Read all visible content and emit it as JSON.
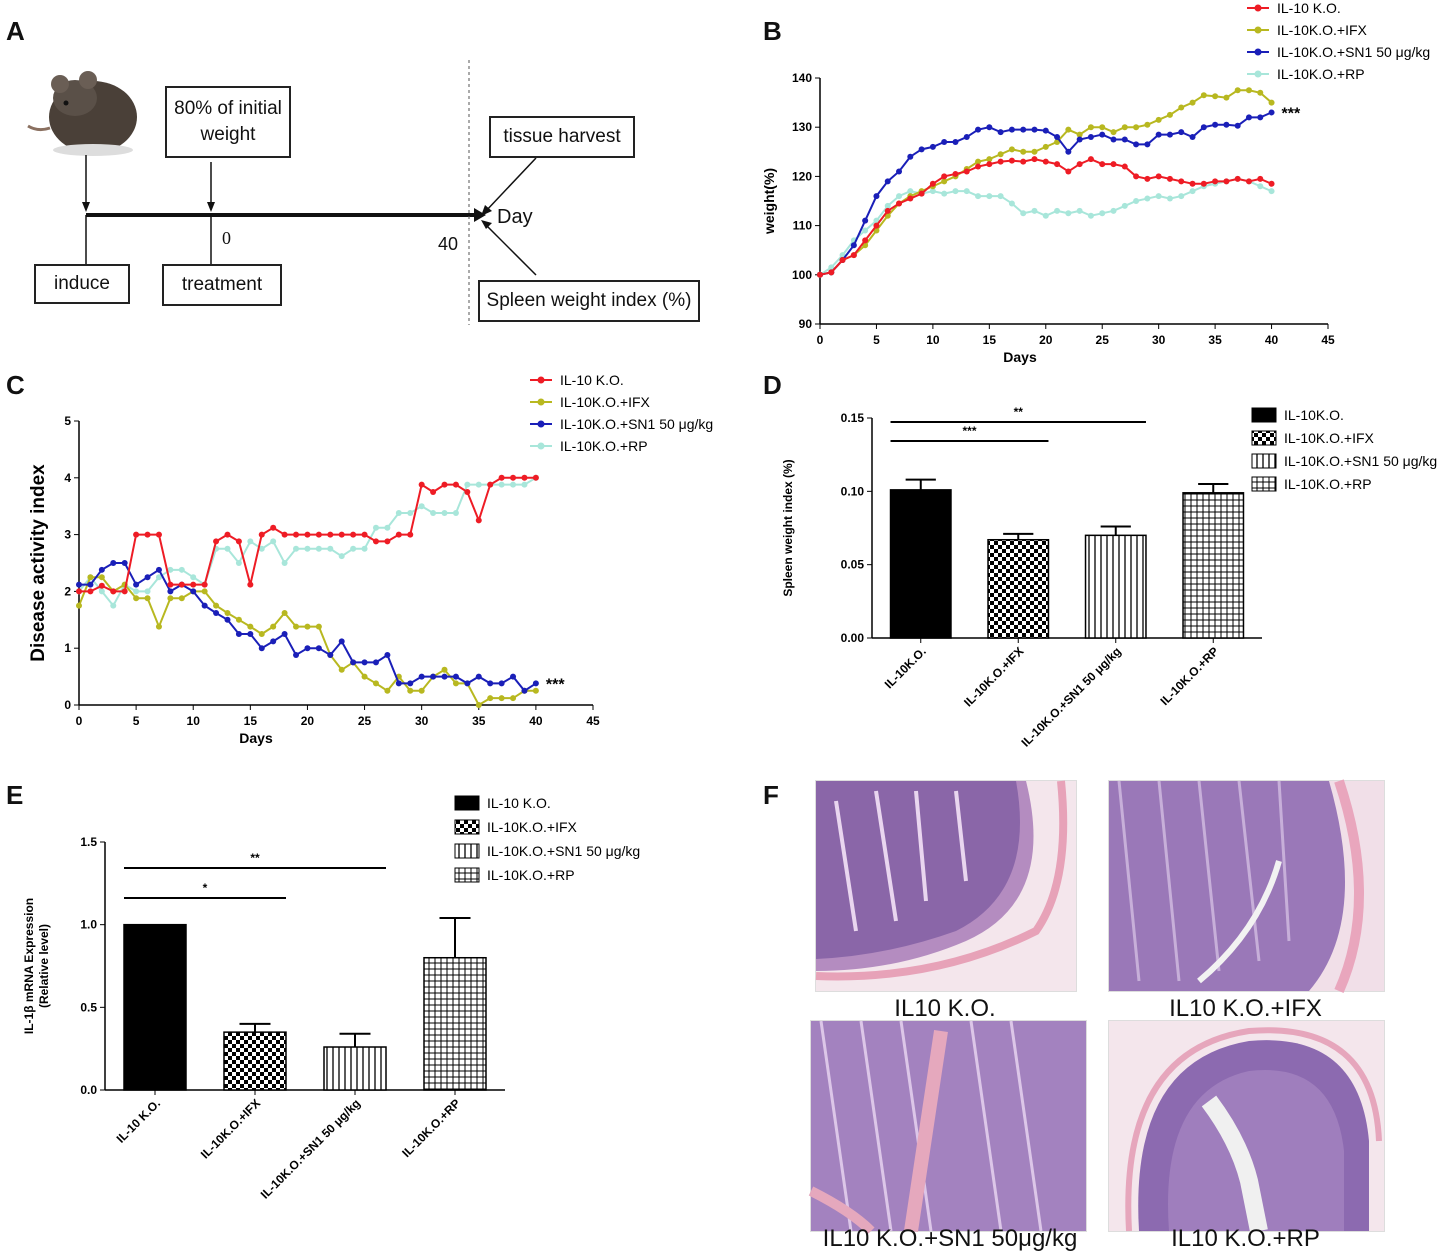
{
  "panels": {
    "A": {
      "letter": "A",
      "boxes": {
        "induce": "induce",
        "treatment": "treatment",
        "initial_weight": "80% of initial weight",
        "tissue_harvest": "tissue harvest",
        "spleen_index": "Spleen weight index (%)"
      },
      "labels": {
        "zero": "0",
        "forty": "40",
        "day": "Day"
      },
      "image_desc_icon": "mouse-icon"
    },
    "B": {
      "letter": "B"
    },
    "C": {
      "letter": "C"
    },
    "D": {
      "letter": "D"
    },
    "E": {
      "letter": "E"
    },
    "F": {
      "letter": "F",
      "captions": [
        "IL10 K.O.",
        "IL10 K.O.+IFX",
        "IL10 K.O.+SN1  50μg/kg",
        "IL10 K.O.+RP"
      ]
    }
  },
  "colors": {
    "red": "#ee1c25",
    "olive": "#b8b820",
    "blue": "#1a1fb8",
    "cyan": "#a8e6da"
  },
  "chart_data": [
    {
      "id": "B",
      "type": "line",
      "xlabel": "Days",
      "ylabel": "weight(%)",
      "xlim": [
        0,
        45
      ],
      "ylim": [
        90,
        140
      ],
      "xticks": [
        0,
        5,
        10,
        15,
        20,
        25,
        30,
        35,
        40,
        45
      ],
      "yticks": [
        90,
        100,
        110,
        120,
        130,
        140
      ],
      "annotation": "***",
      "legend": [
        "IL-10 K.O.",
        "IL-10K.O.+IFX",
        "IL-10K.O.+SN1 50 μg/kg",
        "IL-10K.O.+RP"
      ],
      "series": [
        {
          "name": "IL-10 K.O.",
          "color": "#ee1c25",
          "x": [
            0,
            1,
            2,
            3,
            4,
            5,
            6,
            7,
            8,
            9,
            10,
            11,
            12,
            13,
            14,
            15,
            16,
            17,
            18,
            19,
            20,
            21,
            22,
            23,
            24,
            25,
            26,
            27,
            28,
            29,
            30,
            31,
            32,
            33,
            34,
            35,
            36,
            37,
            38,
            39,
            40
          ],
          "values": [
            100,
            100.5,
            103,
            104,
            107,
            110,
            113,
            114.5,
            115.5,
            116.5,
            118.5,
            120,
            120.5,
            121,
            122,
            122.5,
            123,
            123.2,
            123,
            123.5,
            123,
            122.5,
            121,
            122.5,
            123.5,
            122.5,
            122.5,
            122,
            120,
            119.5,
            120,
            119.5,
            119,
            118.5,
            118.5,
            119,
            119,
            119.5,
            119,
            119.5,
            118.5
          ]
        },
        {
          "name": "IL-10K.O.+IFX",
          "color": "#b8b820",
          "x": [
            0,
            1,
            2,
            3,
            4,
            5,
            6,
            7,
            8,
            9,
            10,
            11,
            12,
            13,
            14,
            15,
            16,
            17,
            18,
            19,
            20,
            21,
            22,
            23,
            24,
            25,
            26,
            27,
            28,
            29,
            30,
            31,
            32,
            33,
            34,
            35,
            36,
            37,
            38,
            39,
            40
          ],
          "values": [
            100,
            100.5,
            103,
            104,
            106,
            109,
            112,
            114.5,
            116,
            117,
            118,
            119,
            120,
            121.5,
            123,
            123.5,
            124.5,
            125.5,
            125,
            125,
            126,
            127,
            129.5,
            128.5,
            130,
            130,
            129,
            130,
            130,
            130.5,
            131.5,
            132.5,
            134,
            135,
            136.5,
            136.3,
            136,
            137.5,
            137.5,
            137,
            135
          ]
        },
        {
          "name": "IL-10K.O.+SN1 50 μg/kg",
          "color": "#1a1fb8",
          "x": [
            0,
            1,
            2,
            3,
            4,
            5,
            6,
            7,
            8,
            9,
            10,
            11,
            12,
            13,
            14,
            15,
            16,
            17,
            18,
            19,
            20,
            21,
            22,
            23,
            24,
            25,
            26,
            27,
            28,
            29,
            30,
            31,
            32,
            33,
            34,
            35,
            36,
            37,
            38,
            39,
            40
          ],
          "values": [
            100,
            100.5,
            103,
            106,
            111,
            116,
            119,
            121,
            124,
            125.5,
            126,
            127,
            127,
            128,
            129.5,
            130,
            129,
            129.5,
            129.5,
            129.5,
            129.3,
            128,
            125,
            127.5,
            128,
            128.5,
            127.5,
            127.5,
            126.5,
            126.5,
            128.5,
            128.5,
            129,
            128,
            130,
            130.5,
            130.5,
            130.3,
            132,
            132,
            133
          ]
        },
        {
          "name": "IL-10K.O.+RP",
          "color": "#a8e6da",
          "x": [
            0,
            1,
            2,
            3,
            4,
            5,
            6,
            7,
            8,
            9,
            10,
            11,
            12,
            13,
            14,
            15,
            16,
            17,
            18,
            19,
            20,
            21,
            22,
            23,
            24,
            25,
            26,
            27,
            28,
            29,
            30,
            31,
            32,
            33,
            34,
            35,
            36,
            37,
            38,
            39,
            40
          ],
          "values": [
            100,
            101.5,
            104,
            107,
            109,
            111,
            114,
            116,
            117,
            116.5,
            117,
            116.5,
            117,
            117,
            116,
            116,
            116,
            114.5,
            112.5,
            113,
            112,
            113,
            112.5,
            113,
            112,
            112.5,
            113,
            114,
            115,
            115.5,
            116,
            115.5,
            116,
            117,
            118,
            118.5,
            119,
            119.5,
            119,
            118,
            117
          ]
        }
      ]
    },
    {
      "id": "C",
      "type": "line",
      "xlabel": "Days",
      "ylabel": "Disease activity index",
      "xlim": [
        0,
        45
      ],
      "ylim": [
        0,
        5
      ],
      "xticks": [
        0,
        5,
        10,
        15,
        20,
        25,
        30,
        35,
        40,
        45
      ],
      "yticks": [
        0,
        1,
        2,
        3,
        4,
        5
      ],
      "annotation": "***",
      "legend": [
        "IL-10 K.O.",
        "IL-10K.O.+IFX",
        "IL-10K.O.+SN1 50 μg/kg",
        "IL-10K.O.+RP"
      ],
      "series": [
        {
          "name": "IL-10 K.O.",
          "color": "#ee1c25",
          "x": [
            0,
            1,
            2,
            3,
            4,
            5,
            6,
            7,
            8,
            9,
            10,
            11,
            12,
            13,
            14,
            15,
            16,
            17,
            18,
            19,
            20,
            21,
            22,
            23,
            24,
            25,
            26,
            27,
            28,
            29,
            30,
            31,
            32,
            33,
            34,
            35,
            36,
            37,
            38,
            39,
            40
          ],
          "values": [
            2,
            2,
            2.1,
            2,
            2,
            3,
            3,
            3,
            2.12,
            2.12,
            2.12,
            2.12,
            2.88,
            3,
            2.88,
            2.12,
            3,
            3.12,
            3,
            3,
            3,
            3,
            3,
            3,
            3,
            3,
            2.88,
            2.88,
            3,
            3,
            3.88,
            3.75,
            3.88,
            3.88,
            3.75,
            3.25,
            3.88,
            4,
            4,
            4,
            4
          ]
        },
        {
          "name": "IL-10K.O.+IFX",
          "color": "#b8b820",
          "x": [
            0,
            1,
            2,
            3,
            4,
            5,
            6,
            7,
            8,
            9,
            10,
            11,
            12,
            13,
            14,
            15,
            16,
            17,
            18,
            19,
            20,
            21,
            22,
            23,
            24,
            25,
            26,
            27,
            28,
            29,
            30,
            31,
            32,
            33,
            34,
            35,
            36,
            37,
            38,
            39,
            40
          ],
          "values": [
            1.75,
            2.25,
            2.25,
            2,
            2.12,
            1.88,
            1.88,
            1.38,
            1.88,
            1.88,
            2,
            2,
            1.75,
            1.62,
            1.5,
            1.38,
            1.25,
            1.38,
            1.62,
            1.38,
            1.38,
            1.38,
            0.88,
            0.62,
            0.75,
            0.5,
            0.38,
            0.25,
            0.5,
            0.25,
            0.25,
            0.5,
            0.62,
            0.38,
            0.38,
            0,
            0.12,
            0.12,
            0.12,
            0.25,
            0.25
          ]
        },
        {
          "name": "IL-10K.O.+SN1 50 μg/kg",
          "color": "#1a1fb8",
          "x": [
            0,
            1,
            2,
            3,
            4,
            5,
            6,
            7,
            8,
            9,
            10,
            11,
            12,
            13,
            14,
            15,
            16,
            17,
            18,
            19,
            20,
            21,
            22,
            23,
            24,
            25,
            26,
            27,
            28,
            29,
            30,
            31,
            32,
            33,
            34,
            35,
            36,
            37,
            38,
            39,
            40
          ],
          "values": [
            2.12,
            2.12,
            2.38,
            2.5,
            2.5,
            2.12,
            2.25,
            2.38,
            2,
            2.12,
            2,
            1.75,
            1.62,
            1.5,
            1.25,
            1.25,
            1,
            1.12,
            1.25,
            0.88,
            1,
            1,
            0.88,
            1.12,
            0.75,
            0.75,
            0.75,
            0.88,
            0.38,
            0.38,
            0.5,
            0.5,
            0.5,
            0.5,
            0.38,
            0.5,
            0.38,
            0.38,
            0.5,
            0.25,
            0.38
          ]
        },
        {
          "name": "IL-10K.O.+RP",
          "color": "#a8e6da",
          "x": [
            0,
            1,
            2,
            3,
            4,
            5,
            6,
            7,
            8,
            9,
            10,
            11,
            12,
            13,
            14,
            15,
            16,
            17,
            18,
            19,
            20,
            21,
            22,
            23,
            24,
            25,
            26,
            27,
            28,
            29,
            30,
            31,
            32,
            33,
            34,
            35,
            36,
            37,
            38,
            39,
            40
          ],
          "values": [
            2,
            2.25,
            2,
            1.75,
            2.12,
            2,
            2,
            2.25,
            2.38,
            2.38,
            2.25,
            2.12,
            2.75,
            2.75,
            2.5,
            2.88,
            2.75,
            2.88,
            2.5,
            2.75,
            2.75,
            2.75,
            2.75,
            2.62,
            2.75,
            2.75,
            3.12,
            3.12,
            3.38,
            3.38,
            3.5,
            3.38,
            3.38,
            3.38,
            3.88,
            3.88,
            3.88,
            3.88,
            3.88,
            3.88,
            4
          ]
        }
      ]
    },
    {
      "id": "D",
      "type": "bar",
      "ylabel": "Spleen weight index (%)",
      "ylim": [
        0,
        0.15
      ],
      "yticks": [
        "0.00",
        "0.05",
        "0.10",
        "0.15"
      ],
      "categories": [
        "IL-10K.O.",
        "IL-10K.O.+IFX",
        "IL-10K.O.+SN1 50 μg/kg",
        "IL-10K.O.+RP"
      ],
      "values": [
        0.101,
        0.067,
        0.07,
        0.099
      ],
      "errors": [
        0.007,
        0.004,
        0.006,
        0.006
      ],
      "patterns": [
        "solid",
        "checker",
        "vertical",
        "grid"
      ],
      "legend": [
        "IL-10K.O.",
        "IL-10K.O.+IFX",
        "IL-10K.O.+SN1 50 μg/kg",
        "IL-10K.O.+RP"
      ],
      "significance": [
        {
          "from": 0,
          "to": 2,
          "label": "**"
        },
        {
          "from": 0,
          "to": 1,
          "label": "***"
        }
      ]
    },
    {
      "id": "E",
      "type": "bar",
      "ylabel": "IL-1β mRNA Expression",
      "ylabel2": "(Relative level)",
      "ylim": [
        0,
        1.5
      ],
      "yticks": [
        "0.0",
        "0.5",
        "1.0",
        "1.5"
      ],
      "categories": [
        "IL-10 K.O.",
        "IL-10K.O.+IFX",
        "IL-10K.O.+SN1 50 μg/kg",
        "IL-10K.O.+RP"
      ],
      "values": [
        1.0,
        0.35,
        0.26,
        0.8
      ],
      "errors": [
        0,
        0.05,
        0.08,
        0.24
      ],
      "patterns": [
        "solid",
        "checker",
        "vertical",
        "grid"
      ],
      "legend": [
        "IL-10 K.O.",
        "IL-10K.O.+IFX",
        "IL-10K.O.+SN1 50 μg/kg",
        "IL-10K.O.+RP"
      ],
      "significance": [
        {
          "from": 0,
          "to": 2,
          "label": "**"
        },
        {
          "from": 0,
          "to": 1,
          "label": "*"
        }
      ]
    }
  ]
}
